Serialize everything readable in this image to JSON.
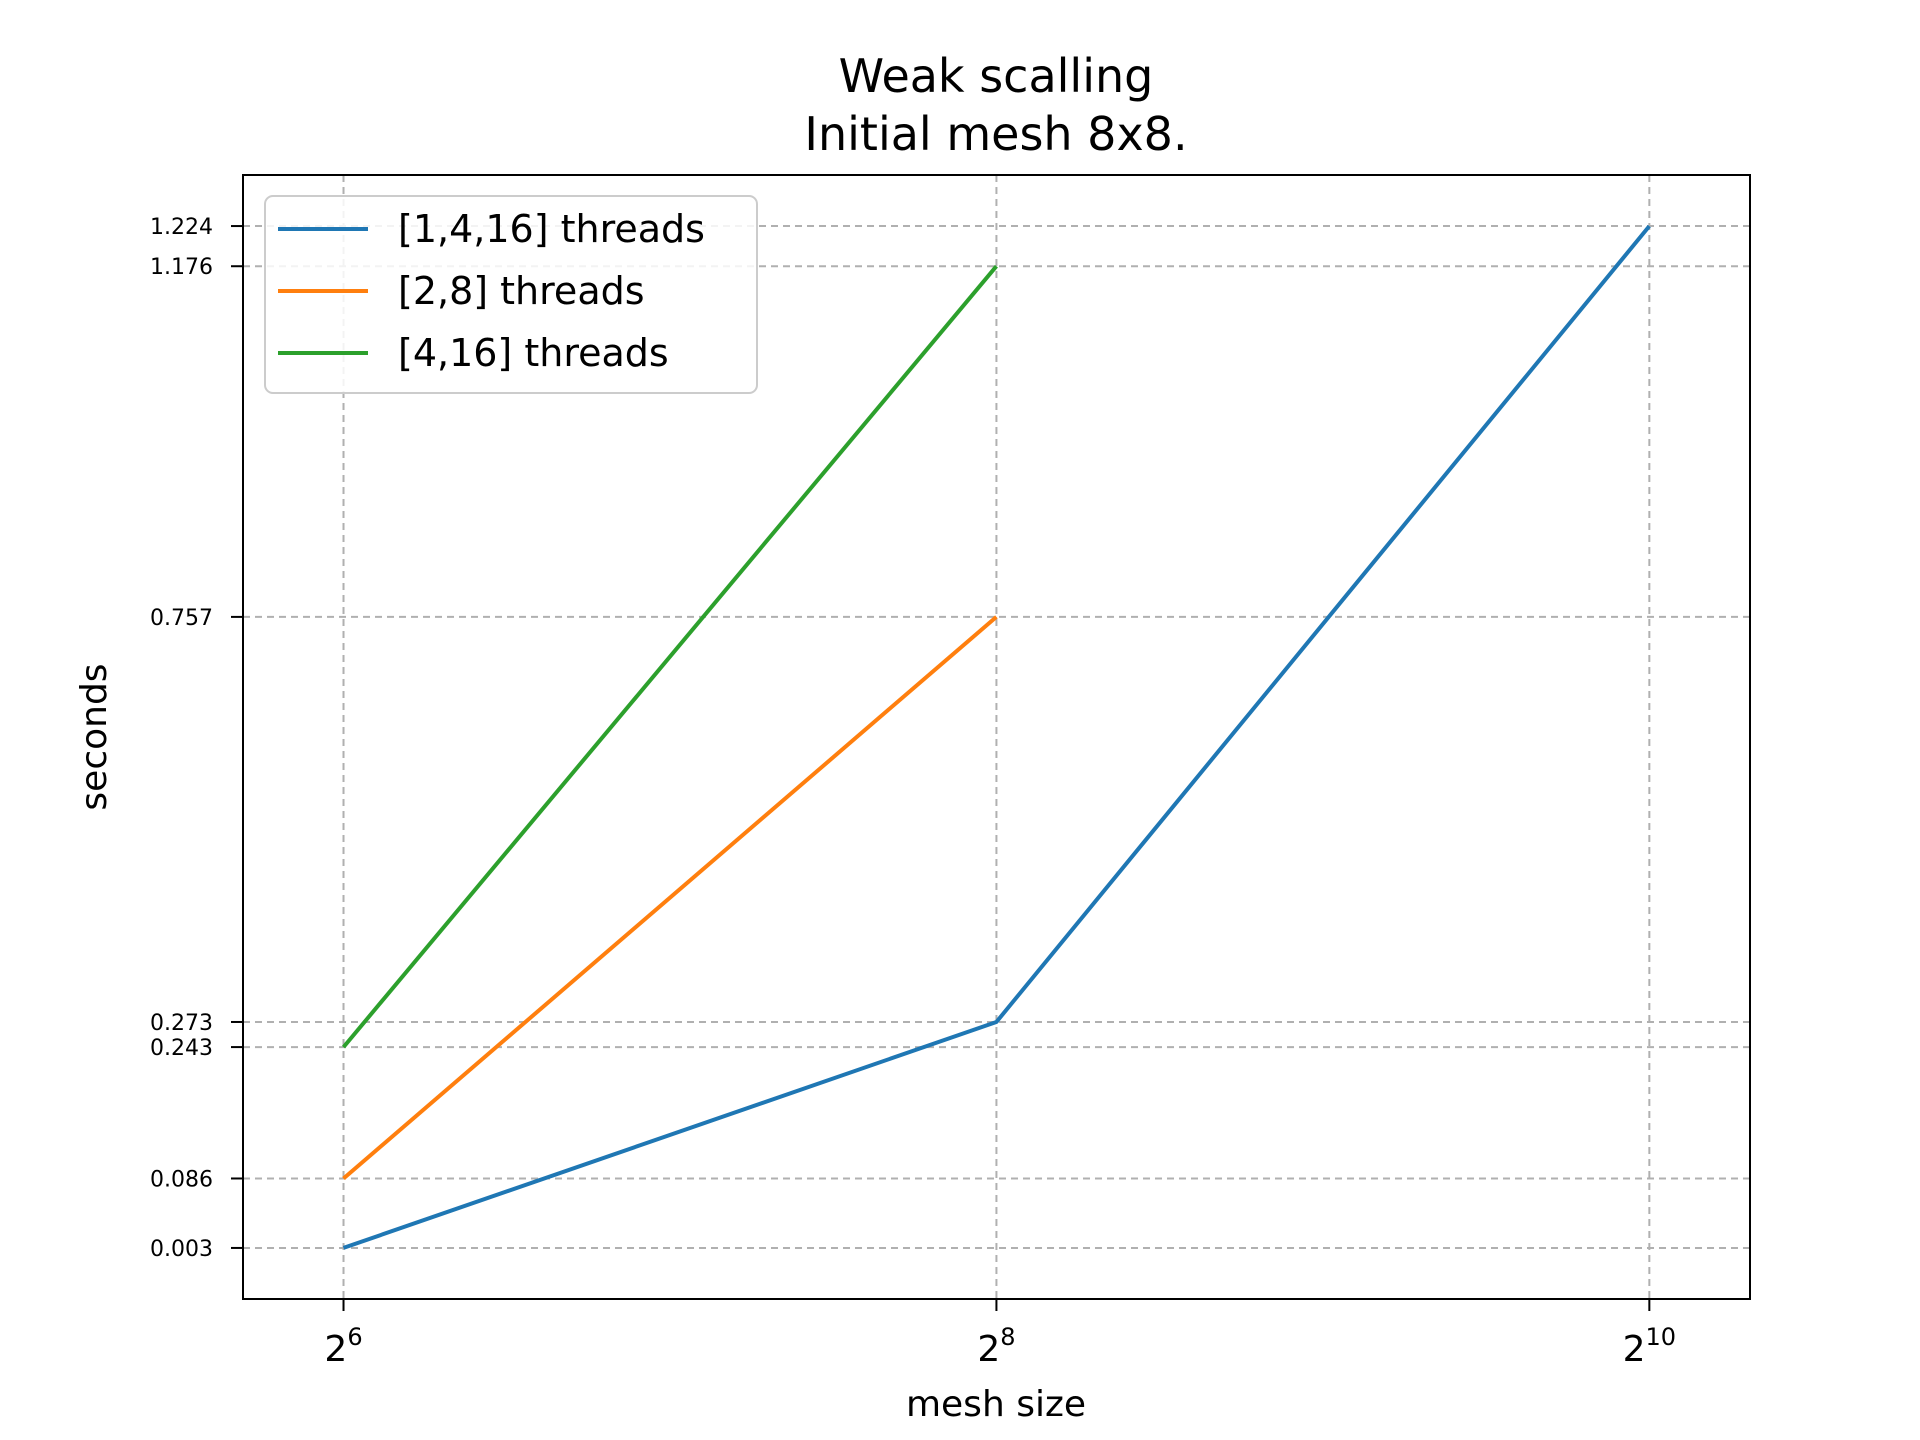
{
  "chart_data": {
    "type": "line",
    "title_lines": [
      "Weak scalling",
      "Initial mesh 8x8."
    ],
    "xlabel": "mesh size",
    "ylabel": "seconds",
    "x_scale": "log2",
    "x_ticks": [
      {
        "value": 64,
        "base": "2",
        "exp": "6"
      },
      {
        "value": 256,
        "base": "2",
        "exp": "8"
      },
      {
        "value": 1024,
        "base": "2",
        "exp": "10"
      }
    ],
    "y_ticks": [
      0.003,
      0.086,
      0.243,
      0.273,
      0.757,
      1.176,
      1.224
    ],
    "y_tick_labels": [
      "0.003",
      "0.086",
      "0.243",
      "0.273",
      "0.757",
      "1.176",
      "1.224"
    ],
    "xlim": [
      51.7,
      1268
    ],
    "ylim": [
      -0.058,
      1.285
    ],
    "grid": true,
    "legend_position": "upper-left",
    "series": [
      {
        "name": "[1,4,16] threads",
        "color": "#1f77b4",
        "x": [
          64,
          256,
          1024
        ],
        "y": [
          0.003,
          0.273,
          1.224
        ]
      },
      {
        "name": "[2,8] threads",
        "color": "#ff7f0e",
        "x": [
          64,
          256
        ],
        "y": [
          0.086,
          0.757
        ]
      },
      {
        "name": "[4,16] threads",
        "color": "#2ca02c",
        "x": [
          64,
          256
        ],
        "y": [
          0.243,
          1.176
        ]
      }
    ]
  }
}
